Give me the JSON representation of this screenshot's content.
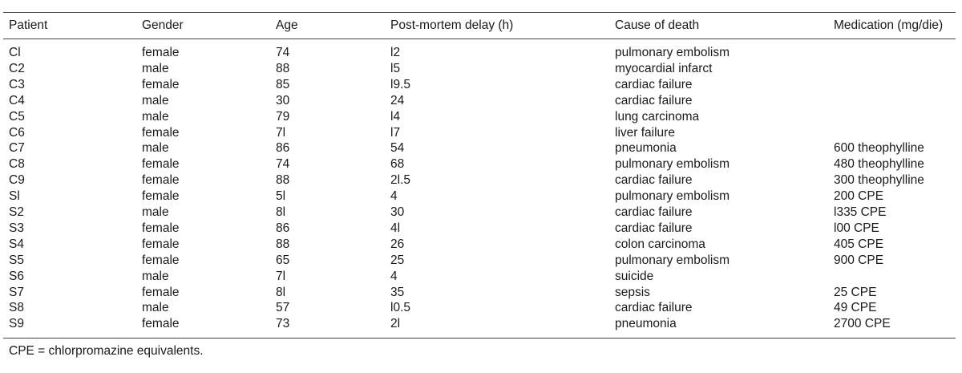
{
  "table": {
    "headers": [
      "Patient",
      "Gender",
      "Age",
      "Post-mortem delay (h)",
      "Cause of death",
      "Medication (mg/die)"
    ],
    "rows": [
      [
        "Cl",
        "female",
        "74",
        "l2",
        "pulmonary embolism",
        ""
      ],
      [
        "C2",
        "male",
        "88",
        "l5",
        "myocardial infarct",
        ""
      ],
      [
        "C3",
        "female",
        "85",
        "l9.5",
        "cardiac failure",
        ""
      ],
      [
        "C4",
        "male",
        "30",
        "24",
        "cardiac failure",
        ""
      ],
      [
        "C5",
        "male",
        "79",
        "l4",
        "lung carcinoma",
        ""
      ],
      [
        "C6",
        "female",
        "7l",
        "l7",
        "liver failure",
        ""
      ],
      [
        "C7",
        "male",
        "86",
        "54",
        "pneumonia",
        "600 theophylline"
      ],
      [
        "C8",
        "female",
        "74",
        "68",
        "pulmonary embolism",
        "480 theophylline"
      ],
      [
        "C9",
        "female",
        "88",
        "2l.5",
        "cardiac failure",
        "300 theophylline"
      ],
      [
        "Sl",
        "female",
        "5l",
        "4",
        "pulmonary embolism",
        "200 CPE"
      ],
      [
        "S2",
        "male",
        "8l",
        "30",
        "cardiac failure",
        "l335 CPE"
      ],
      [
        "S3",
        "female",
        "86",
        "4l",
        "cardiac failure",
        "l00 CPE"
      ],
      [
        "S4",
        "female",
        "88",
        "26",
        "colon carcinoma",
        "405 CPE"
      ],
      [
        "S5",
        "female",
        "65",
        "25",
        "pulmonary embolism",
        "900 CPE"
      ],
      [
        "S6",
        "male",
        "7l",
        "4",
        "suicide",
        ""
      ],
      [
        "S7",
        "female",
        "8l",
        "35",
        "sepsis",
        "25 CPE"
      ],
      [
        "S8",
        "male",
        "57",
        "l0.5",
        "cardiac failure",
        "49 CPE"
      ],
      [
        "S9",
        "female",
        "73",
        "2l",
        "pneumonia",
        "2700 CPE"
      ]
    ]
  },
  "footnote": "CPE = chlorpromazine equivalents."
}
